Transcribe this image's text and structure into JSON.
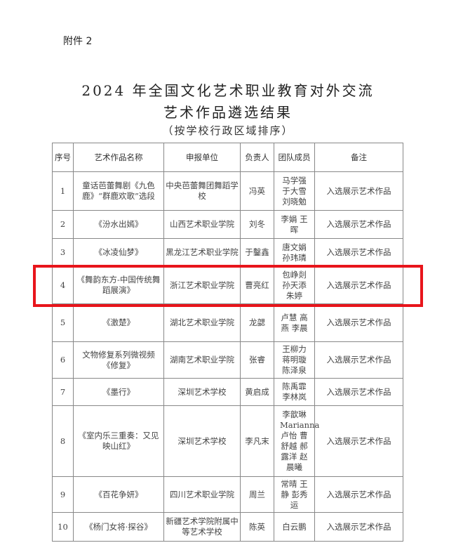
{
  "attachment": "附件 2",
  "title_line1": "2024 年全国文化艺术职业教育对外交流",
  "title_line2": "艺术作品遴选结果",
  "subtitle": "（按学校行政区域排序）",
  "table": {
    "headers": [
      "序号",
      "艺术作品名称",
      "申报单位",
      "负责人",
      "团队成员",
      "备注"
    ],
    "rows": [
      {
        "no": "1",
        "work": "童话芭蕾舞剧《九色鹿》“群鹿欢歌”选段",
        "unit": "中央芭蕾舞团舞蹈学校",
        "lead": "冯英",
        "members": "马学强 于大雪 刘晓勉",
        "note": "入选展示艺术作品"
      },
      {
        "no": "2",
        "work": "《汾水出嫣》",
        "unit": "山西艺术职业学院",
        "lead": "刘冬",
        "members": "李娟 王晖",
        "note": "入选展示艺术作品"
      },
      {
        "no": "3",
        "work": "《冰凌仙梦》",
        "unit": "黑龙江艺术职业学院",
        "lead": "于鑿鑫",
        "members": "唐文娟 孙玮璘",
        "note": "入选展示艺术作品"
      },
      {
        "no": "4",
        "work": "《舞韵东方-中国传统舞蹈展演》",
        "unit": "浙江艺术职业学院",
        "lead": "曹亮红",
        "members": "包峥剡 孙天添 朱婷",
        "note": "入选展示艺术作品"
      },
      {
        "no": "5",
        "work": "《激楚》",
        "unit": "湖北艺术职业学院",
        "lead": "龙勰",
        "members": "卢慧 高燕 李晨",
        "note": "入选展示艺术作品"
      },
      {
        "no": "6",
        "work": "文物修复系列微视频《修复》",
        "unit": "湖南艺术职业学院",
        "lead": "张睿",
        "members": "王柳力 蒋明璇 陈泽泉",
        "note": "入选展示艺术作品"
      },
      {
        "no": "7",
        "work": "《墨行》",
        "unit": "深圳艺术学校",
        "lead": "黄启成",
        "members": "陈禹霏 李林岚",
        "note": "入选展示艺术作品"
      },
      {
        "no": "8",
        "work": "《室内乐三重奏：又见映山红》",
        "unit": "深圳艺术学校",
        "lead": "李凡末",
        "members": "李歆琳 Marianna 卢怡 曹舒越 郝露洋 赵晨曦",
        "note": "入选展示艺术作品"
      },
      {
        "no": "9",
        "work": "《百花争妍》",
        "unit": "四川艺术职业学院",
        "lead": "周兰",
        "members": "常晴 王静 彭秀运",
        "note": "入选展示艺术作品"
      },
      {
        "no": "10",
        "work": "《杨门女将·探谷》",
        "unit": "新疆艺术学院附属中等艺术学校",
        "lead": "陈英",
        "members": "白云鹏",
        "note": "入选展示艺术作品"
      }
    ]
  },
  "highlight_color": "#e8151b",
  "highlighted_row": "4"
}
